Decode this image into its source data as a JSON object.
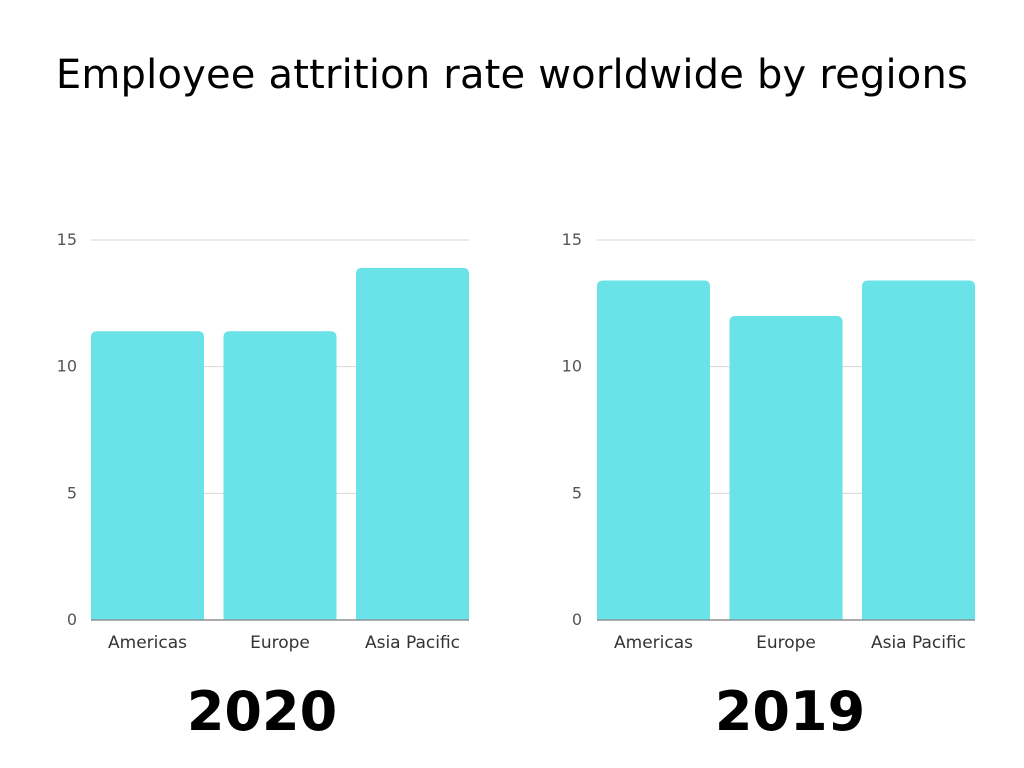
{
  "page": {
    "title": "Employee attrition rate worldwide by regions"
  },
  "chart_data": [
    {
      "type": "bar",
      "title": "",
      "year_label": "2020",
      "categories": [
        "Americas",
        "Europe",
        "Asia Pacific"
      ],
      "values": [
        11.4,
        11.4,
        13.9
      ],
      "ylim": [
        0,
        15
      ],
      "yticks": [
        0,
        5,
        10,
        15
      ],
      "xlabel": "",
      "ylabel": "",
      "grid": true,
      "color": "#6ae3e8"
    },
    {
      "type": "bar",
      "title": "",
      "year_label": "2019",
      "categories": [
        "Americas",
        "Europe",
        "Asia Pacific"
      ],
      "values": [
        13.4,
        12.0,
        13.4
      ],
      "ylim": [
        0,
        15
      ],
      "yticks": [
        0,
        5,
        10,
        15
      ],
      "xlabel": "",
      "ylabel": "",
      "grid": true,
      "color": "#6ae3e8"
    }
  ]
}
